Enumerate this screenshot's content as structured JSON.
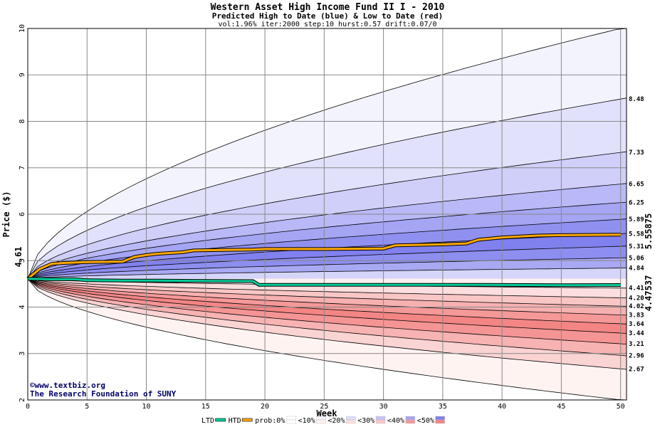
{
  "chart_data": {
    "type": "area",
    "title": "Western Asset High Income Fund II I - 2010",
    "subtitle": "Predicted High to Date (blue) &  Low to Date (red)",
    "params": "vol:1.96% iter:2000 step:10 hurst:0.57 drift:0.07/0",
    "xlabel": "Week",
    "ylabel": "Price ($)",
    "xlim": [
      0,
      50.5
    ],
    "ylim": [
      2,
      10
    ],
    "x_ticks": [
      0,
      5,
      10,
      15,
      20,
      25,
      30,
      35,
      40,
      45,
      50
    ],
    "y_ticks": [
      2,
      3,
      4,
      5,
      6,
      7,
      8,
      9,
      10
    ],
    "grid": true,
    "start_price": 4.61,
    "start_label": "4.61",
    "htd_end_label": "5.55875",
    "ltd_end_label": "4.47537",
    "high_band_end_labels": [
      "8.48",
      "7.33",
      "6.65",
      "6.25",
      "5.89",
      "5.58",
      "5.31",
      "5.06",
      "4.84"
    ],
    "low_band_end_labels": [
      "4.41",
      "4.20",
      "4.02",
      "3.83",
      "3.64",
      "3.44",
      "3.21",
      "2.96",
      "2.67"
    ],
    "high_quantiles_at_end": [
      10.0,
      8.48,
      7.33,
      6.65,
      6.25,
      5.89,
      5.58,
      5.31,
      5.06,
      4.84,
      4.61
    ],
    "low_quantiles_at_end": [
      4.61,
      4.41,
      4.2,
      4.02,
      3.83,
      3.64,
      3.44,
      3.21,
      2.96,
      2.67,
      2.0
    ],
    "high_band_colors": [
      "#f3f3fe",
      "#e1e1fc",
      "#cfcffa",
      "#b9b9f7",
      "#a5a5f4",
      "#9090f0",
      "#8080ee",
      "#8e8ef0",
      "#a8a8f3",
      "#d5d5fa"
    ],
    "low_band_colors": [
      "#fff0f0",
      "#fcdede",
      "#f9c6c6",
      "#f7b0b0",
      "#f59898",
      "#f38585",
      "#f59494",
      "#f7b2b2",
      "#fad3d3",
      "#fff3f1"
    ],
    "series": [
      {
        "name": "HTD",
        "color": "#ffaa00",
        "x": [
          0,
          1,
          2,
          3,
          5,
          8,
          9,
          10,
          11,
          13,
          14,
          19,
          20,
          25,
          30,
          31,
          35,
          37,
          38,
          40,
          43,
          45,
          50
        ],
        "values": [
          4.61,
          4.82,
          4.93,
          4.95,
          4.97,
          4.98,
          5.08,
          5.12,
          5.15,
          5.18,
          5.22,
          5.24,
          5.25,
          5.25,
          5.26,
          5.33,
          5.35,
          5.37,
          5.45,
          5.5,
          5.54,
          5.55,
          5.55875
        ]
      },
      {
        "name": "LTD",
        "color": "#00cc99",
        "x": [
          0,
          2,
          4,
          5,
          8,
          11,
          19,
          19.5,
          25,
          30,
          38,
          45,
          50
        ],
        "values": [
          4.61,
          4.6,
          4.6,
          4.58,
          4.57,
          4.57,
          4.56,
          4.48,
          4.48,
          4.48,
          4.48,
          4.47,
          4.47537
        ]
      }
    ],
    "legend": {
      "placement": "bottom",
      "items": [
        {
          "label": "LTD",
          "color": "#00cc99",
          "kind": "line"
        },
        {
          "label": "HTD",
          "color": "#ffaa00",
          "kind": "line"
        },
        {
          "label": "prob:0%",
          "blue": "#ffffff",
          "red": "#ffffff",
          "kind": "swatch"
        },
        {
          "label": "<10%",
          "blue": "#f3f3fe",
          "red": "#fff0f0",
          "kind": "swatch"
        },
        {
          "label": "<20%",
          "blue": "#dcdcfb",
          "red": "#fcdede",
          "kind": "swatch"
        },
        {
          "label": "<30%",
          "blue": "#c4c4f8",
          "red": "#f9c6c6",
          "kind": "swatch"
        },
        {
          "label": "<40%",
          "blue": "#a5a5f4",
          "red": "#f59898",
          "kind": "swatch"
        },
        {
          "label": "<50%",
          "blue": "#8080ee",
          "red": "#f38585",
          "kind": "swatch"
        }
      ]
    }
  },
  "credits": {
    "line1": "©www.textbiz.org",
    "line2": "The Research Foundation of SUNY"
  }
}
